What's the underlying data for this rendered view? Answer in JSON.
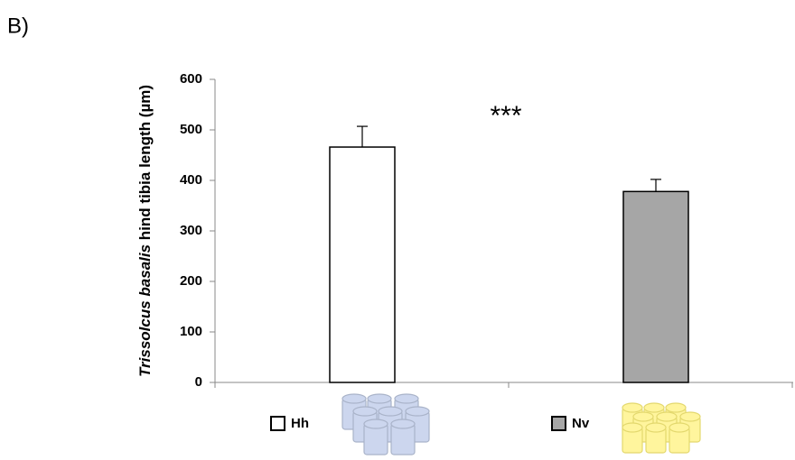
{
  "chart_data": {
    "type": "bar",
    "panel_label": "B)",
    "y_label": {
      "species": "Trissolcus basalis",
      "text": "hind tibia length (µm)"
    },
    "annotation": "***",
    "categories": [
      "Hh",
      "Nv"
    ],
    "values": [
      466,
      378
    ],
    "errors": [
      41,
      24
    ],
    "colors": [
      "#ffffff",
      "#a6a6a6"
    ],
    "ylim": [
      0,
      600
    ],
    "yticks": [
      0,
      100,
      200,
      300,
      400,
      500,
      600
    ],
    "grid": false
  }
}
